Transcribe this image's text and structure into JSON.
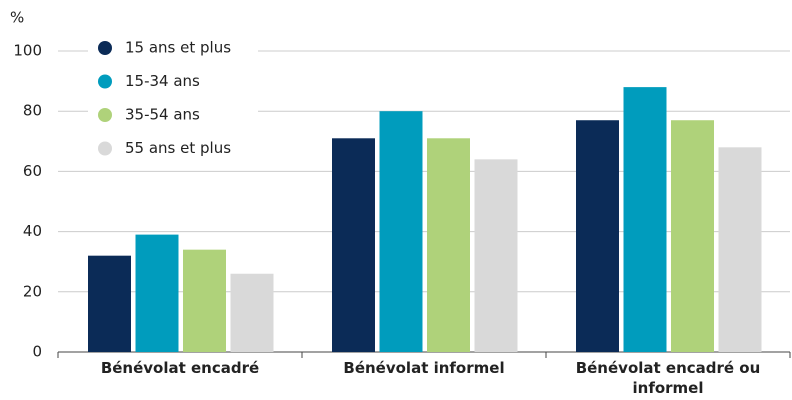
{
  "chart_data": {
    "type": "bar",
    "y_label": "%",
    "categories": [
      "Bénévolat encadré",
      "Bénévolat informel",
      "Bénévolat encadré ou informel"
    ],
    "series": [
      {
        "name": "15 ans et plus",
        "color": "#0b2b57",
        "values": [
          32,
          71,
          77
        ]
      },
      {
        "name": "15-34 ans",
        "color": "#009cbd",
        "values": [
          39,
          80,
          88
        ]
      },
      {
        "name": "35-54 ans",
        "color": "#afd27a",
        "values": [
          34,
          71,
          77
        ]
      },
      {
        "name": "55 ans et plus",
        "color": "#d9d9d9",
        "values": [
          26,
          64,
          68
        ]
      }
    ],
    "ylim": [
      0,
      100
    ],
    "yticks": [
      0,
      20,
      40,
      60,
      80,
      100
    ],
    "grid": true,
    "legend": "top-left"
  }
}
